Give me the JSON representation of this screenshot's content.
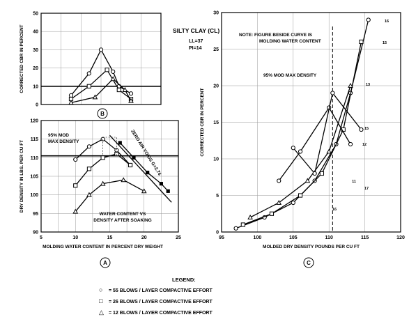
{
  "chart_data": [
    {
      "id": "B",
      "type": "line",
      "panel_label": "B",
      "ylabel": "CORRECTED CBR IN PERCENT",
      "xlim": [
        5,
        25
      ],
      "ylim": [
        0,
        50
      ],
      "yticks": [
        0,
        10,
        20,
        30,
        40,
        50
      ],
      "grid": true,
      "reference_line_y": 10,
      "series": [
        {
          "marker": "circle",
          "x": [
            10,
            13,
            15,
            17,
            18,
            20
          ],
          "y": [
            5,
            17,
            30,
            18,
            10,
            6
          ]
        },
        {
          "marker": "square",
          "x": [
            10,
            13,
            16,
            18,
            20
          ],
          "y": [
            3,
            10,
            19,
            8,
            3
          ]
        },
        {
          "marker": "triangle",
          "x": [
            10,
            14,
            17,
            19,
            20
          ],
          "y": [
            1,
            4,
            14,
            8,
            2
          ]
        }
      ]
    },
    {
      "id": "A",
      "type": "line",
      "panel_label": "A",
      "xlabel": "MOLDING WATER CONTENT IN PERCENT DRY WEIGHT",
      "ylabel": "DRY DENSITY IN LBS. PER CU FT",
      "xlim": [
        5,
        25
      ],
      "ylim": [
        90,
        120
      ],
      "xticks": [
        5,
        10,
        15,
        20,
        25
      ],
      "yticks": [
        90,
        95,
        100,
        105,
        110,
        115,
        120
      ],
      "grid": true,
      "reference_line_y": 110.5,
      "series": [
        {
          "marker": "circle",
          "x": [
            10,
            12,
            14,
            16,
            18
          ],
          "y": [
            109.5,
            113,
            115,
            112,
            108
          ]
        },
        {
          "marker": "square",
          "x": [
            10,
            12,
            14,
            16,
            18
          ],
          "y": [
            102.5,
            107,
            110,
            111,
            108
          ]
        },
        {
          "marker": "triangle",
          "x": [
            10,
            12,
            14,
            17,
            20
          ],
          "y": [
            95.5,
            100,
            103,
            104,
            101
          ]
        },
        {
          "name": "ZERO AIR VOIDS G=2.76",
          "marker": "none",
          "x": [
            15,
            18,
            20,
            22,
            24
          ],
          "y": [
            116,
            110,
            106,
            102,
            98
          ]
        },
        {
          "name": "WATER CONTENT VS DENSITY AFTER SOAKING",
          "marker": "filled",
          "x": [
            16.5,
            18.5,
            20.5,
            22.5,
            23.5
          ],
          "y": [
            114,
            110,
            106,
            103,
            101
          ]
        }
      ],
      "annotations": {
        "zero_air_voids": "ZERO AIR VOIDS G=2.76",
        "mod_max_line1": "95% MOD",
        "mod_max_line2": "MAX DENSITY",
        "soak_line1": "WATER CONTENT VS",
        "soak_line2": "DENSITY AFTER SOAKING"
      }
    },
    {
      "id": "C",
      "type": "line",
      "panel_label": "C",
      "xlabel": "MOLDED DRY DENSITY POUNDS PER CU FT",
      "ylabel": "CORRECTED CBR IN PERCENT",
      "xlim": [
        95,
        120
      ],
      "ylim": [
        0,
        30
      ],
      "xticks": [
        95,
        100,
        105,
        110,
        115,
        120
      ],
      "yticks": [
        0,
        5,
        10,
        15,
        20,
        25,
        30
      ],
      "grid": true,
      "reference_line_x": 110.5,
      "note_line1": "NOTE: FIGURE BESIDE CURVE IS",
      "note_line2": "MOLDING WATER CONTENT",
      "mod_max_label": "95% MOD MAX DENSITY",
      "curve_labels": [
        "16",
        "15",
        "13",
        "15",
        "12",
        "11",
        "17",
        "16"
      ],
      "series": [
        {
          "marker": "circle",
          "x": [
            97,
            101,
            105,
            108,
            111,
            113,
            115.5
          ],
          "y": [
            0.5,
            2,
            4,
            7,
            12,
            19,
            29
          ]
        },
        {
          "marker": "square",
          "x": [
            98,
            102,
            106,
            109,
            112,
            114.5
          ],
          "y": [
            1,
            2.5,
            5,
            8,
            14,
            26
          ]
        },
        {
          "marker": "triangle",
          "x": [
            99,
            103,
            107,
            110,
            113
          ],
          "y": [
            2,
            4,
            7,
            11,
            20
          ]
        },
        {
          "marker": "circle",
          "x": [
            103,
            106,
            110,
            113
          ],
          "y": [
            7,
            11,
            17,
            12
          ]
        },
        {
          "marker": "circle",
          "x": [
            105,
            108,
            110.5,
            114.5
          ],
          "y": [
            11.5,
            8,
            19,
            14
          ]
        }
      ]
    }
  ],
  "header": {
    "soil_type": "SILTY CLAY (CL)",
    "ll": "LL=37",
    "pi": "PI=14"
  },
  "legend": {
    "title": "LEGEND:",
    "items": [
      {
        "symbol": "○",
        "label": "= 55 BLOWS / LAYER COMPACTIVE EFFORT"
      },
      {
        "symbol": "□",
        "label": "= 26 BLOWS / LAYER COMPACTIVE EFFORT"
      },
      {
        "symbol": "△",
        "label": "= 12 BLOWS / LAYER COMPACTIVE EFFORT"
      }
    ]
  },
  "colors": {
    "ink": "#000000",
    "background": "#ffffff"
  }
}
